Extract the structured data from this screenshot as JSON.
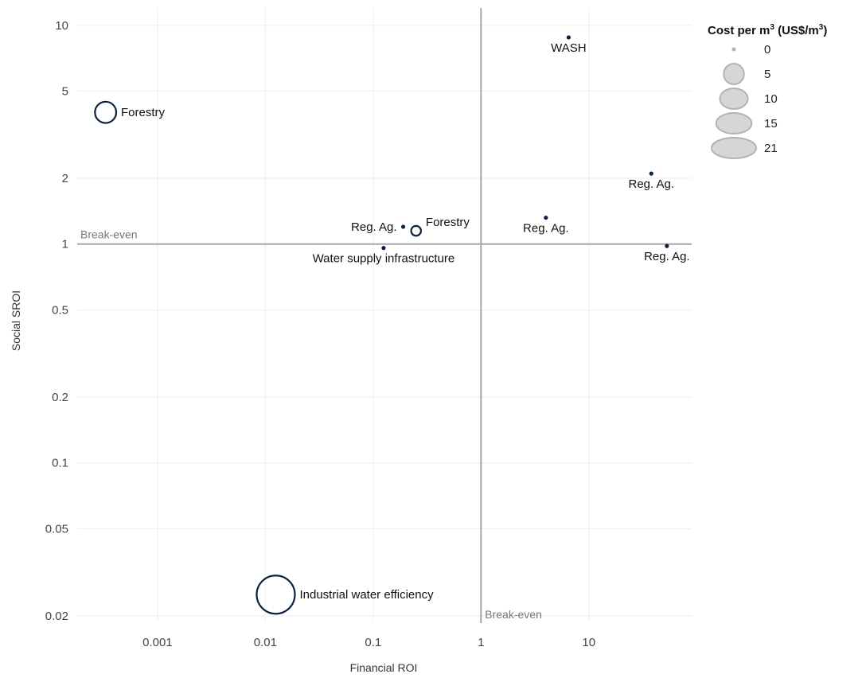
{
  "chart_data": {
    "type": "scatter",
    "title": "",
    "xlabel": "Financial ROI",
    "ylabel": "Social SROI",
    "x_scale": "log",
    "y_scale": "log",
    "xlim": [
      0.00018,
      90
    ],
    "ylim": [
      0.019,
      12
    ],
    "grid": true,
    "x_ticks": [
      {
        "value": 0.001,
        "label": "0.001"
      },
      {
        "value": 0.01,
        "label": "0.01"
      },
      {
        "value": 0.1,
        "label": "0.1"
      },
      {
        "value": 1,
        "label": "1"
      },
      {
        "value": 10,
        "label": "10"
      }
    ],
    "y_ticks": [
      {
        "value": 0.02,
        "label": "0.02"
      },
      {
        "value": 0.05,
        "label": "0.05"
      },
      {
        "value": 0.1,
        "label": "0.1"
      },
      {
        "value": 0.2,
        "label": "0.2"
      },
      {
        "value": 0.5,
        "label": "0.5"
      },
      {
        "value": 1,
        "label": "1"
      },
      {
        "value": 2,
        "label": "2"
      },
      {
        "value": 5,
        "label": "5"
      },
      {
        "value": 10,
        "label": "10"
      }
    ],
    "reference_lines": [
      {
        "axis": "y",
        "value": 1,
        "label": "Break-even"
      },
      {
        "axis": "x",
        "value": 1,
        "label": "Break-even"
      }
    ],
    "points": [
      {
        "label": "WASH",
        "x": 6.5,
        "y": 8.8,
        "cost": 0.3,
        "label_pos": "below"
      },
      {
        "label": "Forestry",
        "x": 0.00033,
        "y": 4.0,
        "cost": 6.5,
        "label_pos": "right"
      },
      {
        "label": "Reg. Ag.",
        "x": 38,
        "y": 2.1,
        "cost": 0.3,
        "label_pos": "below"
      },
      {
        "label": "Reg. Ag.",
        "x": 4.0,
        "y": 1.32,
        "cost": 0.3,
        "label_pos": "below"
      },
      {
        "label": "Reg. Ag.",
        "x": 0.19,
        "y": 1.2,
        "cost": 0.3,
        "label_pos": "left"
      },
      {
        "label": "Forestry",
        "x": 0.25,
        "y": 1.15,
        "cost": 1.4,
        "label_pos": "above-right"
      },
      {
        "label": "Water supply infrastructure",
        "x": 0.125,
        "y": 0.96,
        "cost": 0.3,
        "label_pos": "below"
      },
      {
        "label": "Reg. Ag.",
        "x": 53,
        "y": 0.98,
        "cost": 0.3,
        "label_pos": "below"
      },
      {
        "label": "Industrial water efficiency",
        "x": 0.0125,
        "y": 0.025,
        "cost": 21,
        "label_pos": "right"
      }
    ],
    "marker_color": "#0b2340",
    "legend": {
      "title_prefix": "Cost per m",
      "title_sup": "3",
      "title_mid": " (US$/m",
      "title_sup2": "3",
      "title_suffix": ")",
      "position": "right",
      "items": [
        {
          "label": "0",
          "value": 0
        },
        {
          "label": "5",
          "value": 5
        },
        {
          "label": "10",
          "value": 10
        },
        {
          "label": "15",
          "value": 15
        },
        {
          "label": "21",
          "value": 21
        }
      ]
    }
  }
}
